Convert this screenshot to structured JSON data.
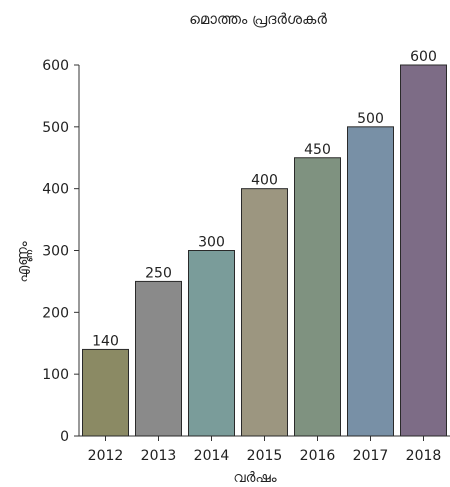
{
  "chart_data": {
    "type": "bar",
    "title": "മൊത്തം പ്രദർശകർ",
    "xlabel": "വർഷം",
    "ylabel": "എണ്ണം",
    "categories": [
      "2012",
      "2013",
      "2014",
      "2015",
      "2016",
      "2017",
      "2018"
    ],
    "values": [
      140,
      250,
      300,
      400,
      450,
      500,
      600
    ],
    "data_labels": [
      "140",
      "250",
      "300",
      "400",
      "450",
      "500",
      "600"
    ],
    "ylim": [
      0,
      600
    ],
    "yticks": [
      0,
      100,
      200,
      300,
      400,
      500,
      600
    ],
    "grid": false,
    "legend": "none",
    "colors": [
      "#8b8a64",
      "#8a8a8a",
      "#7a9c9a",
      "#9c9680",
      "#7f9280",
      "#7890a6",
      "#7d6c86"
    ],
    "bar_edge_color": "#2a2a2a"
  }
}
